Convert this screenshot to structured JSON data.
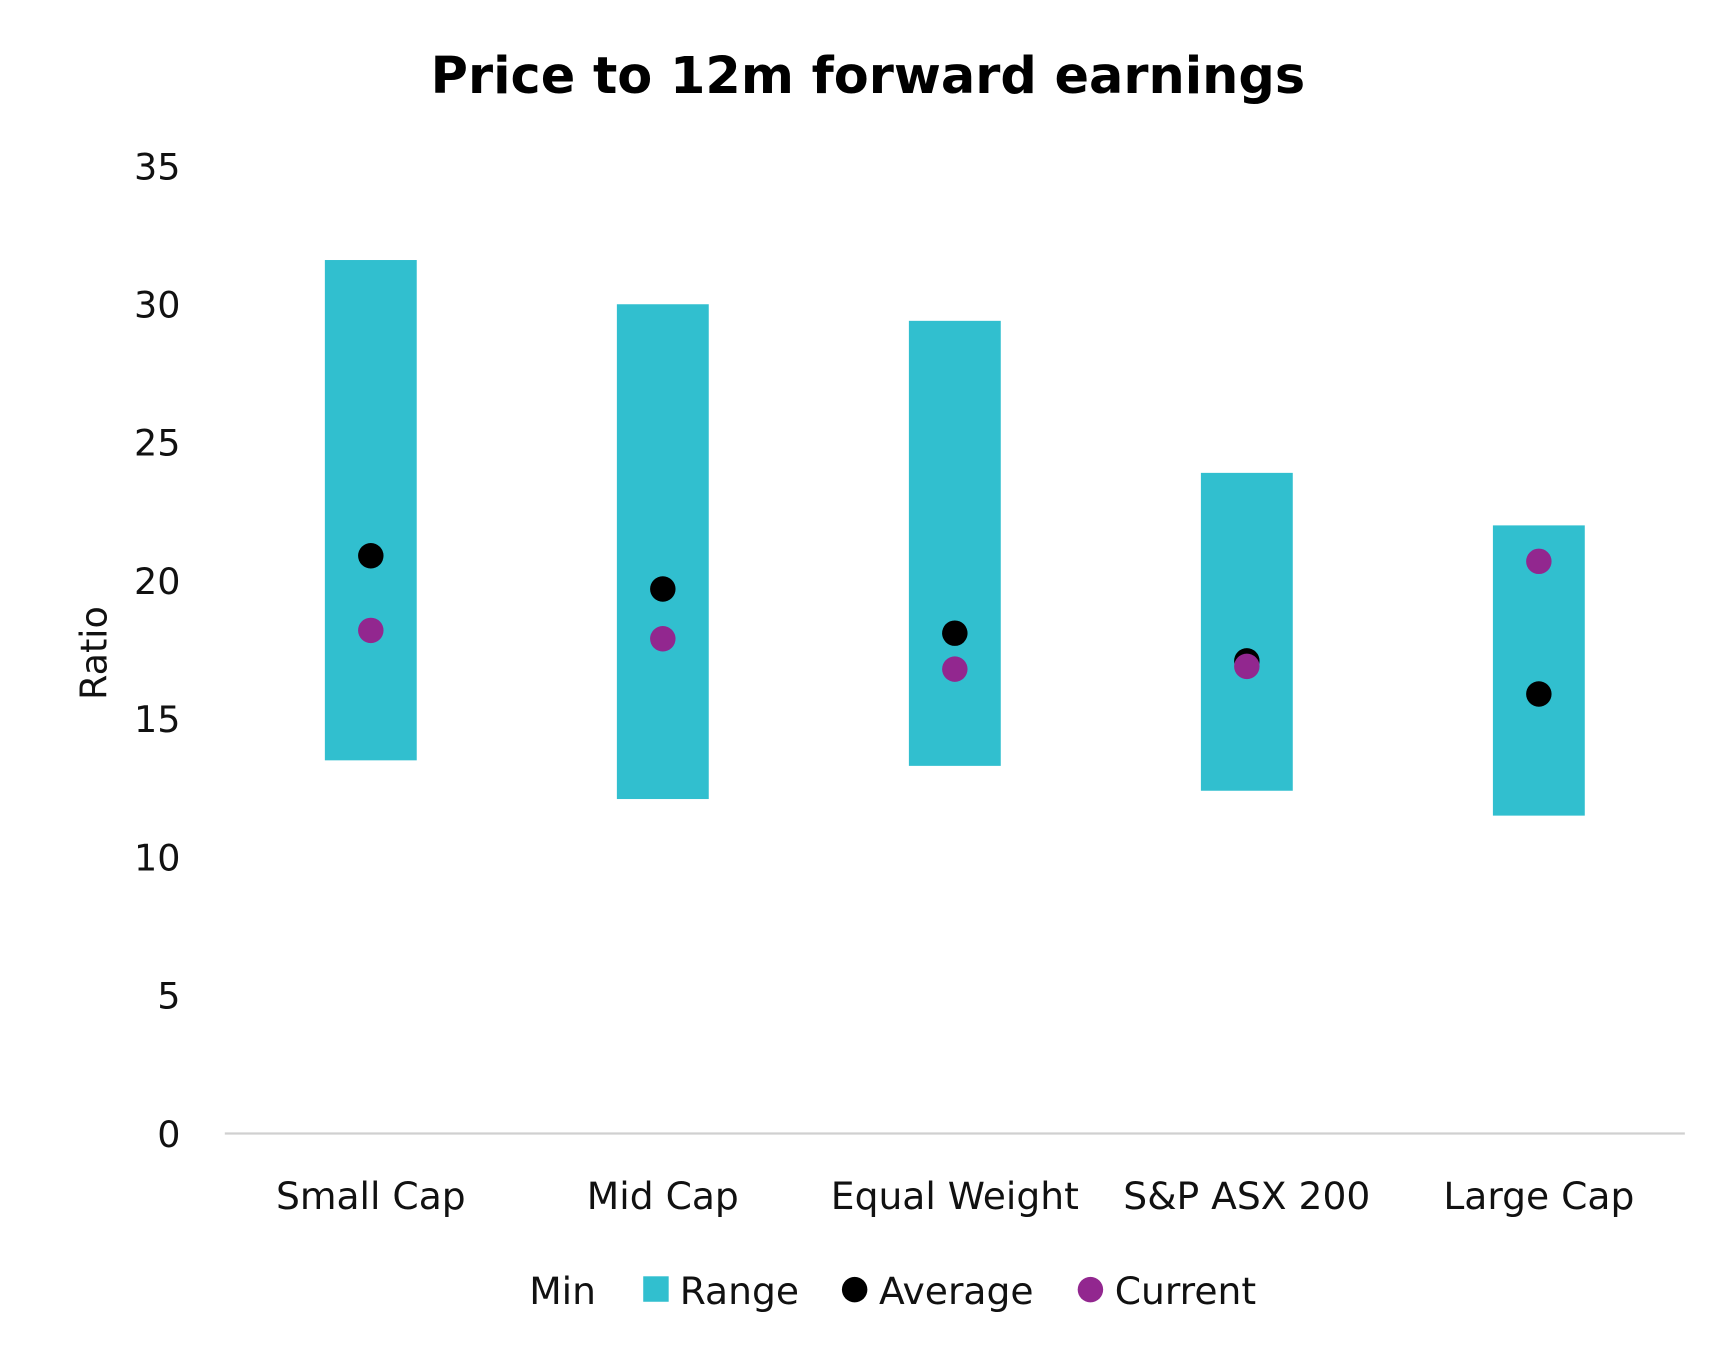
{
  "chart_data": {
    "type": "bar",
    "subtype": "floating-range-with-markers",
    "title": "Price to 12m forward earnings",
    "xlabel": "",
    "ylabel": "Ratio",
    "ylim": [
      0,
      35
    ],
    "yticks": [
      0,
      5,
      10,
      15,
      20,
      25,
      30,
      35
    ],
    "grid": false,
    "legend_placement": "bottom",
    "categories": [
      "Small Cap",
      "Mid Cap",
      "Equal Weight",
      "S&P ASX 200",
      "Large Cap"
    ],
    "series": [
      {
        "name": "Min",
        "kind": "stacked-invisible",
        "values": [
          13.5,
          12.1,
          13.3,
          12.4,
          11.5
        ]
      },
      {
        "name": "Range",
        "kind": "stacked-bar",
        "color": "#31BFCF",
        "values": [
          18.1,
          17.9,
          16.1,
          11.5,
          10.5
        ]
      },
      {
        "name": "Average",
        "kind": "marker",
        "color": "#000000",
        "values": [
          20.9,
          19.7,
          18.1,
          17.1,
          15.9
        ]
      },
      {
        "name": "Current",
        "kind": "marker",
        "color": "#92278F",
        "values": [
          18.2,
          17.9,
          16.8,
          16.9,
          20.7
        ]
      }
    ]
  }
}
